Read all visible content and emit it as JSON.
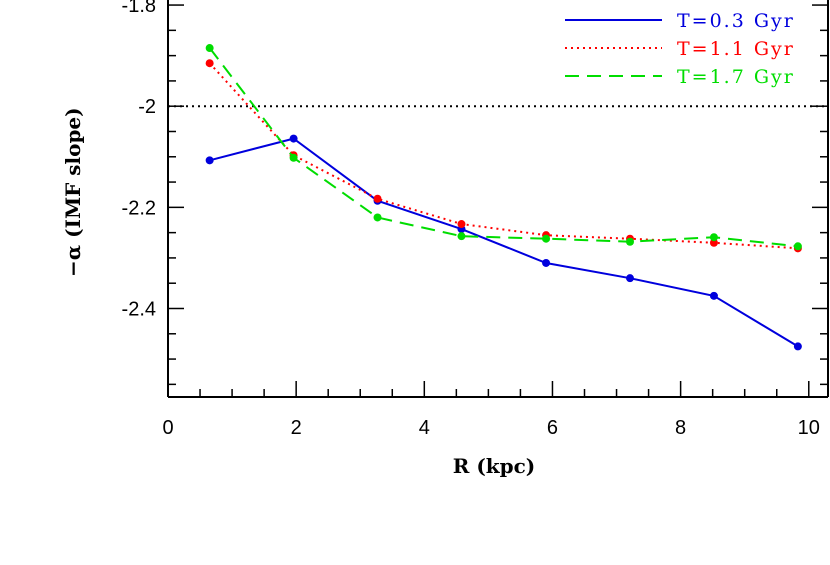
{
  "chart_data": {
    "type": "line",
    "xlabel": "R (kpc)",
    "ylabel": "−α (IMF slope)",
    "xlim": [
      0,
      10.3
    ],
    "ylim": [
      -2.575,
      -1.79
    ],
    "x_ticks": [
      0,
      2,
      4,
      6,
      8,
      10
    ],
    "y_ticks": [
      -2.4,
      -2.2,
      -2,
      -1.8
    ],
    "y_tick_labels": [
      "-2.4",
      "-2.2",
      "-2",
      "-1.8"
    ],
    "x_tick_labels": [
      "0",
      "2",
      "4",
      "6",
      "8",
      "10"
    ],
    "grid": false,
    "legend_position": "top-right",
    "reference_line": {
      "y": -2,
      "style": "dotted",
      "color": "#000000"
    },
    "x": [
      0.65,
      1.96,
      3.27,
      4.58,
      5.9,
      7.21,
      8.52,
      9.83
    ],
    "series": [
      {
        "name": "T=0.3 Gyr",
        "color": "#0000dd",
        "dash": "solid",
        "values": [
          -2.107,
          -2.064,
          -2.187,
          -2.243,
          -2.31,
          -2.34,
          -2.375,
          -2.475
        ]
      },
      {
        "name": "T=1.1 Gyr",
        "color": "#ff0000",
        "dash": "dotted",
        "values": [
          -1.915,
          -2.097,
          -2.183,
          -2.233,
          -2.255,
          -2.262,
          -2.27,
          -2.281
        ]
      },
      {
        "name": "T=1.7 Gyr",
        "color": "#00dd00",
        "dash": "dashed",
        "values": [
          -1.885,
          -2.102,
          -2.22,
          -2.257,
          -2.262,
          -2.268,
          -2.259,
          -2.277
        ]
      }
    ]
  }
}
